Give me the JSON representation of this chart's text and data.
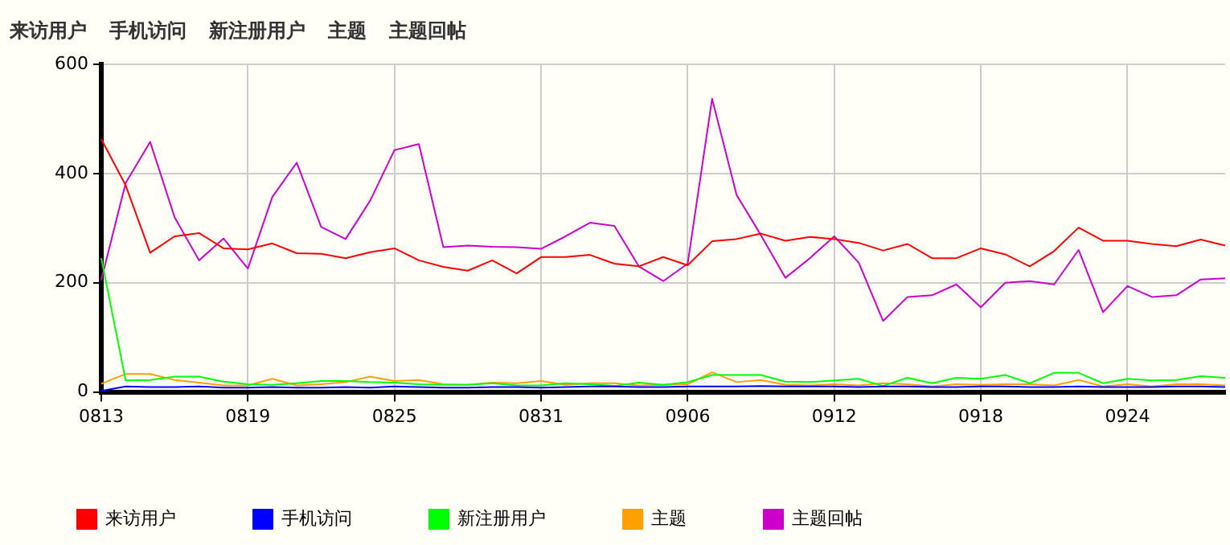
{
  "chart_data": {
    "type": "line",
    "annotations": [
      "来访用户",
      "手机访问",
      "新注册用户",
      "主题",
      "主题回帖"
    ],
    "categories": [
      "0813",
      null,
      null,
      null,
      null,
      null,
      "0819",
      null,
      null,
      null,
      null,
      null,
      "0825",
      null,
      null,
      null,
      null,
      null,
      "0831",
      null,
      null,
      null,
      null,
      null,
      "0906",
      null,
      null,
      null,
      null,
      null,
      "0912",
      null,
      null,
      null,
      null,
      null,
      "0918",
      null,
      null,
      null,
      null,
      null,
      "0924",
      null,
      null,
      null,
      null
    ],
    "series": [
      {
        "name": "来访用户",
        "color": "#ff0000",
        "values": [
          463,
          378,
          255,
          285,
          291,
          263,
          261,
          272,
          254,
          253,
          245,
          256,
          263,
          241,
          229,
          222,
          241,
          217,
          247,
          247,
          251,
          235,
          230,
          247,
          232,
          276,
          280,
          290,
          277,
          284,
          280,
          273,
          259,
          271,
          245,
          245,
          263,
          252,
          230,
          258,
          301,
          277,
          277,
          271,
          267,
          279,
          268
        ]
      },
      {
        "name": "手机访问",
        "color": "#0000ff",
        "values": [
          2,
          10,
          9,
          9,
          10,
          8,
          8,
          9,
          8,
          8,
          9,
          8,
          10,
          9,
          8,
          8,
          9,
          9,
          8,
          9,
          10,
          10,
          9,
          9,
          10,
          10,
          10,
          11,
          10,
          10,
          10,
          9,
          10,
          10,
          9,
          9,
          10,
          10,
          9,
          9,
          10,
          9,
          9,
          9,
          10,
          10,
          9
        ]
      },
      {
        "name": "新注册用户",
        "color": "#00ff00",
        "values": [
          245,
          21,
          22,
          28,
          28,
          19,
          14,
          13,
          16,
          20,
          20,
          18,
          17,
          14,
          13,
          13,
          16,
          12,
          12,
          16,
          14,
          11,
          17,
          13,
          18,
          31,
          31,
          31,
          19,
          18,
          21,
          24,
          11,
          26,
          16,
          26,
          24,
          31,
          16,
          35,
          35,
          16,
          24,
          21,
          22,
          29,
          26
        ]
      },
      {
        "name": "主题",
        "color": "#ffa000",
        "values": [
          15,
          33,
          33,
          22,
          17,
          12,
          12,
          24,
          12,
          14,
          18,
          28,
          20,
          22,
          14,
          13,
          17,
          16,
          20,
          13,
          16,
          16,
          12,
          13,
          14,
          36,
          18,
          22,
          13,
          12,
          14,
          12,
          16,
          14,
          10,
          14,
          13,
          14,
          14,
          12,
          22,
          10,
          14,
          10,
          14,
          14,
          12
        ]
      },
      {
        "name": "主题回帖",
        "color": "#cc00cc",
        "values": [
          205,
          383,
          458,
          320,
          241,
          281,
          226,
          357,
          420,
          302,
          280,
          350,
          443,
          454,
          265,
          268,
          266,
          265,
          262,
          285,
          310,
          304,
          230,
          203,
          235,
          537,
          361,
          287,
          209,
          245,
          285,
          237,
          130,
          174,
          177,
          197,
          155,
          200,
          203,
          197,
          260,
          146,
          194,
          174,
          177,
          206,
          208
        ]
      }
    ],
    "ylim": [
      0,
      600
    ],
    "yticks": [
      0,
      200,
      400,
      600
    ],
    "grid": true,
    "legend": "bottom left",
    "marker": "none",
    "line_style": "solid"
  }
}
